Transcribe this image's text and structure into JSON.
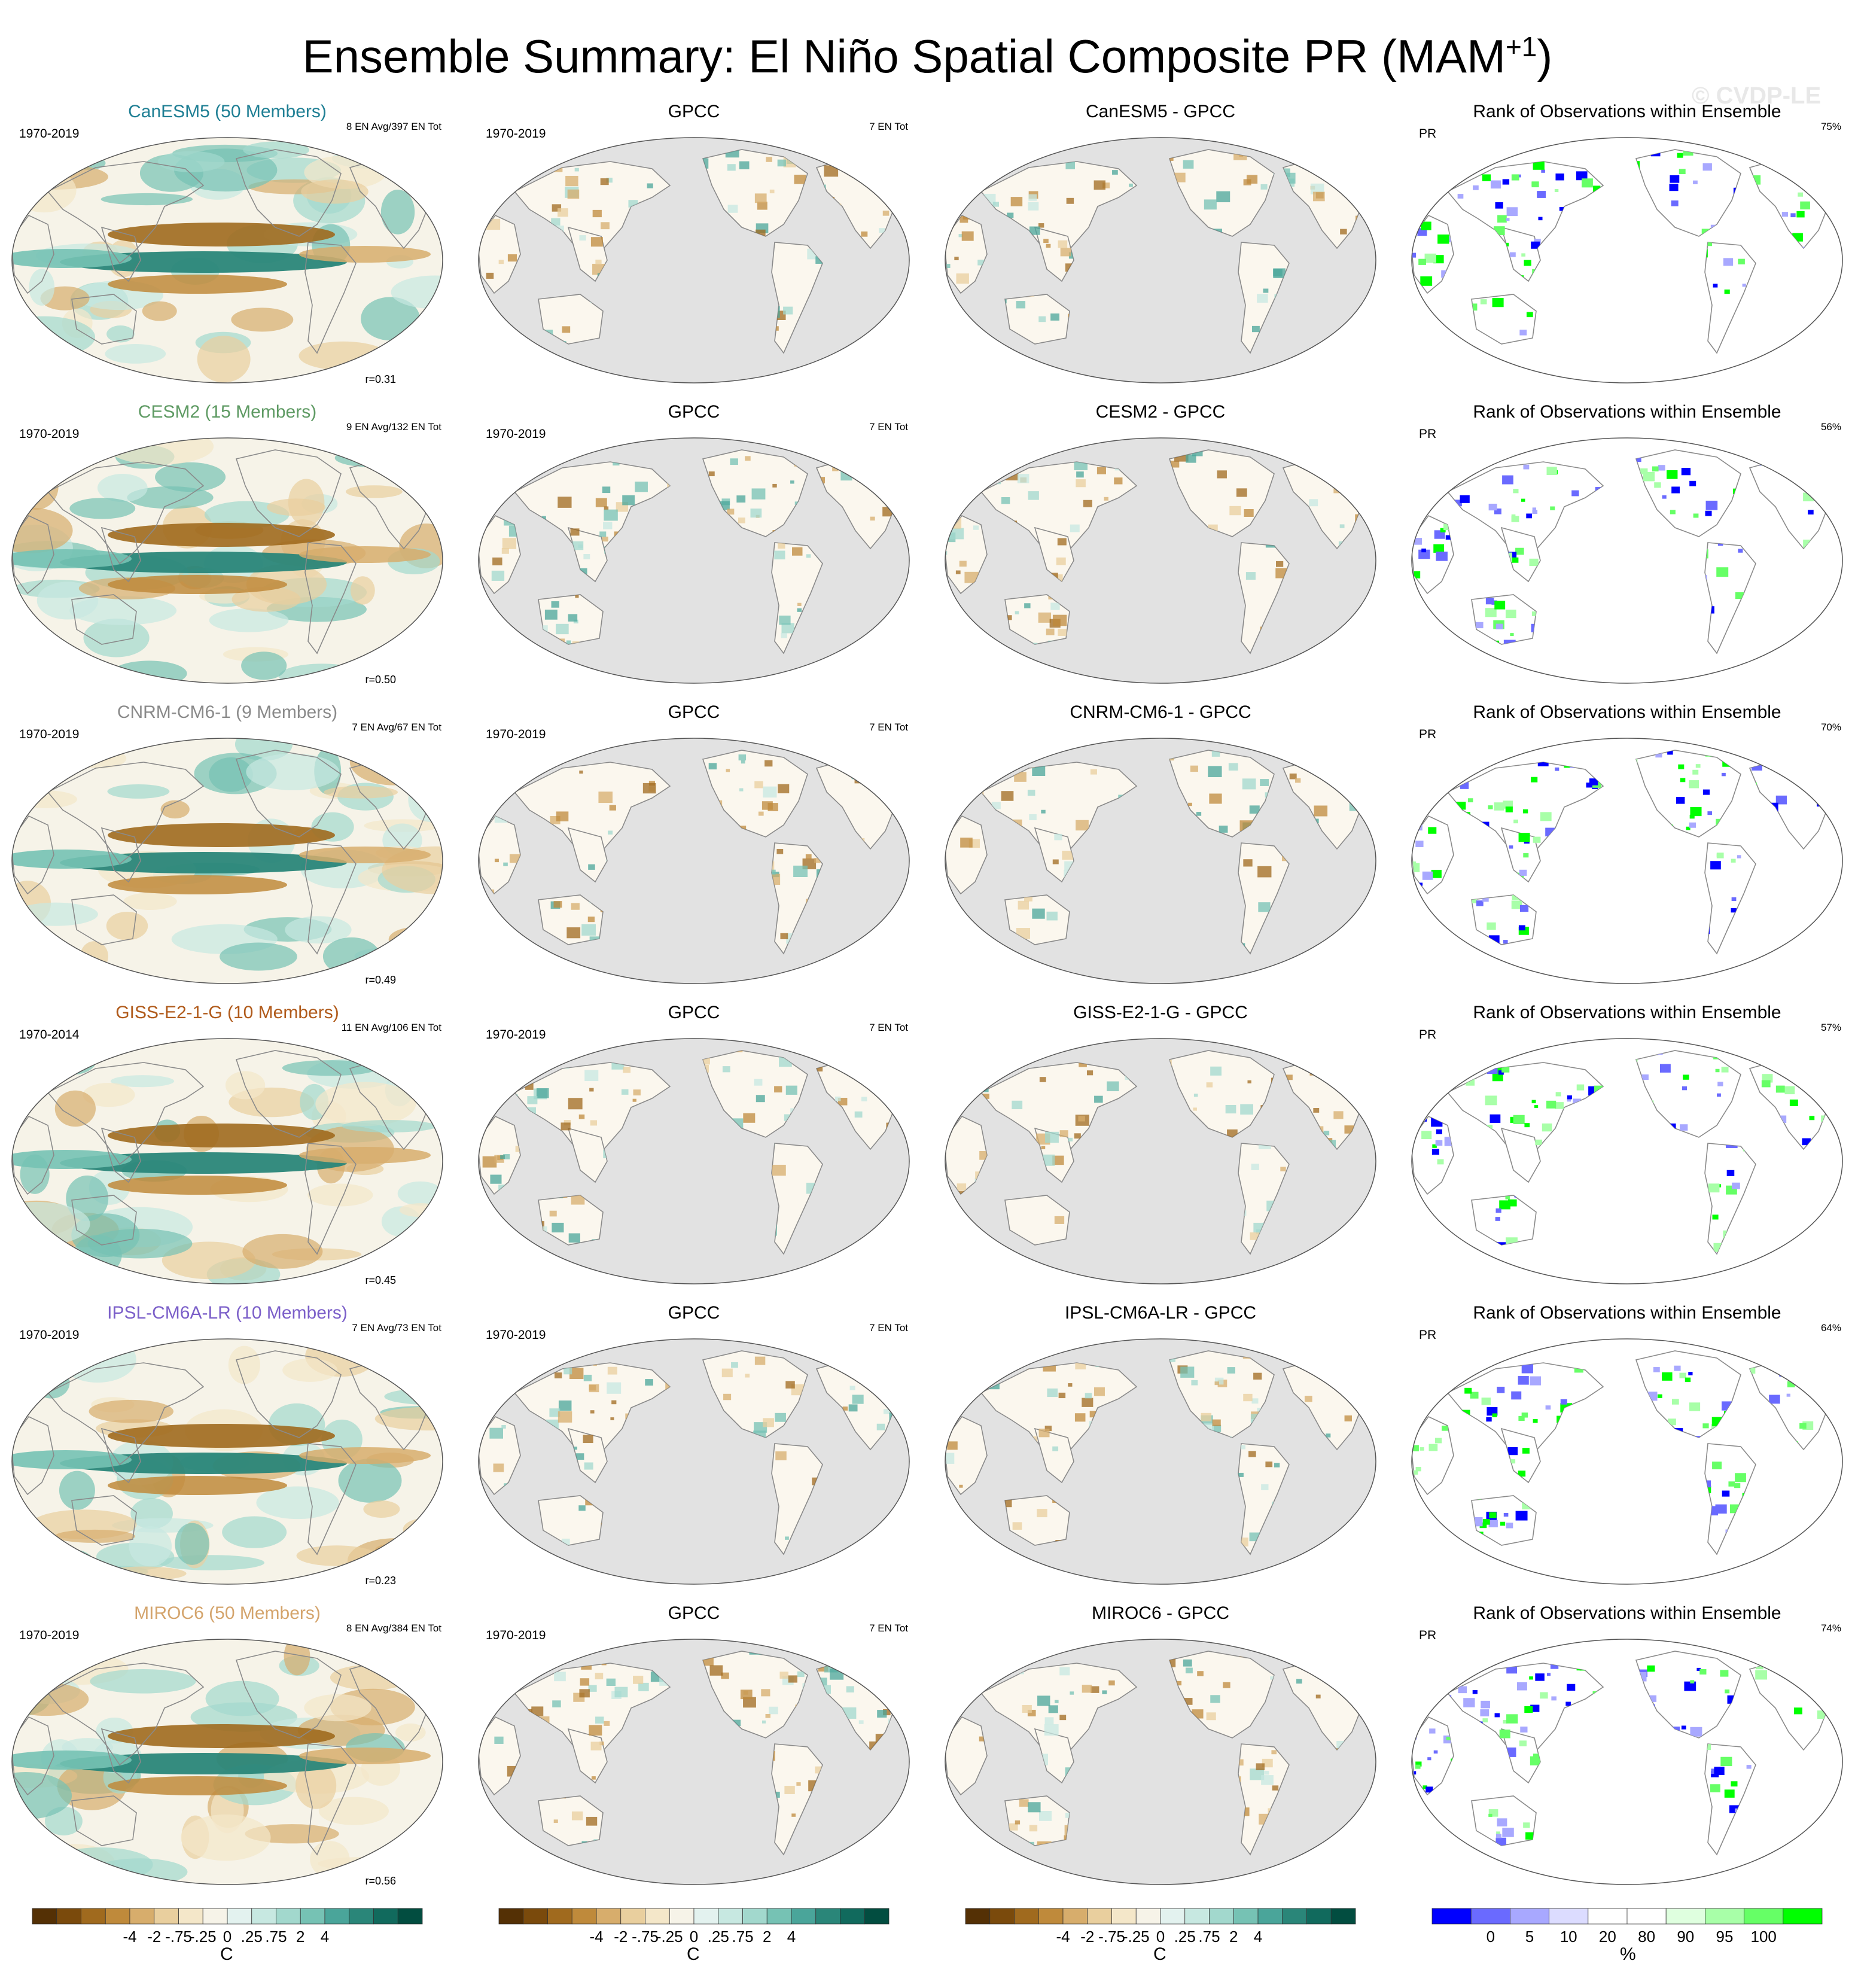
{
  "figure": {
    "title_main": "Ensemble Summary: El Niño Spatial Composite PR (MAM",
    "title_sup": "+1",
    "title_close": ")",
    "watermark": "© CVDP-LE"
  },
  "colors": {
    "diverging_scale": [
      "#543005",
      "#7a4a0c",
      "#a06a1e",
      "#bf8a3b",
      "#d7ad6c",
      "#e9cf9e",
      "#f4e7c9",
      "#f6f3e8",
      "#e3f2ef",
      "#c7e8e1",
      "#a2d8cd",
      "#76c2b4",
      "#4aa59a",
      "#2a8679",
      "#116a5d",
      "#024d40"
    ],
    "rank_scale": [
      "#0000ff",
      "#6a6aff",
      "#a8a8ff",
      "#dcdcff",
      "#ffffff",
      "#ffffff",
      "#dfffdf",
      "#a8ffa8",
      "#66ff66",
      "#00ff00"
    ],
    "land_gray": "#e2e2e2",
    "coast": "#8a8a8a"
  },
  "columns": {
    "obs_title": "GPCC",
    "rank_title": "Rank of Observations within Ensemble",
    "rank_var": "PR",
    "obs_count": "7 EN Tot",
    "obs_years": "1970-2019"
  },
  "rows": [
    {
      "model_title": "CanESM5 (50 Members)",
      "title_color": "#1f7f94",
      "years": "1970-2019",
      "en_info": "8 EN Avg/397 EN Tot",
      "r": "r=0.31",
      "diff_title": "CanESM5 - GPCC",
      "rank_pct": "75%"
    },
    {
      "model_title": "CESM2 (15 Members)",
      "title_color": "#5e9a63",
      "years": "1970-2019",
      "en_info": "9 EN Avg/132 EN Tot",
      "r": "r=0.50",
      "diff_title": "CESM2 - GPCC",
      "rank_pct": "56%"
    },
    {
      "model_title": "CNRM-CM6-1 (9 Members)",
      "title_color": "#8a8a8a",
      "years": "1970-2019",
      "en_info": "7 EN Avg/67 EN Tot",
      "r": "r=0.49",
      "diff_title": "CNRM-CM6-1 - GPCC",
      "rank_pct": "70%"
    },
    {
      "model_title": "GISS-E2-1-G (10 Members)",
      "title_color": "#b05a1a",
      "years": "1970-2014",
      "en_info": "11 EN Avg/106 EN Tot",
      "r": "r=0.45",
      "diff_title": "GISS-E2-1-G - GPCC",
      "rank_pct": "57%"
    },
    {
      "model_title": "IPSL-CM6A-LR (10 Members)",
      "title_color": "#7b5fc9",
      "years": "1970-2019",
      "en_info": "7 EN Avg/73 EN Tot",
      "r": "r=0.23",
      "diff_title": "IPSL-CM6A-LR - GPCC",
      "rank_pct": "64%"
    },
    {
      "model_title": "MIROC6 (50 Members)",
      "title_color": "#d4a46c",
      "years": "1970-2019",
      "en_info": "8 EN Avg/384 EN Tot",
      "r": "r=0.56",
      "diff_title": "MIROC6 - GPCC",
      "rank_pct": "74%"
    }
  ],
  "colorbars": {
    "diverging_ticks": [
      "-4",
      "-2",
      "-.75",
      "-.25",
      "0",
      ".25",
      ".75",
      "2",
      "4"
    ],
    "diverging_unit": "C",
    "rank_ticks": [
      "0",
      "5",
      "10",
      "20",
      "80",
      "90",
      "95",
      "100"
    ],
    "rank_unit": "%"
  },
  "chart_data": {
    "type": "heatmap",
    "title": "Ensemble Summary: El Niño Spatial Composite PR (MAM+1)",
    "panel_columns": [
      "model composite",
      "GPCC",
      "model - GPCC",
      "Rank of Observations within Ensemble"
    ],
    "models": [
      "CanESM5",
      "CESM2",
      "CNRM-CM6-1",
      "GISS-E2-1-G",
      "IPSL-CM6A-LR",
      "MIROC6"
    ],
    "members": [
      50,
      15,
      9,
      10,
      10,
      50
    ],
    "pattern_correlation": [
      0.31,
      0.5,
      0.49,
      0.45,
      0.23,
      0.56
    ],
    "rank_percent": [
      75,
      56,
      70,
      57,
      64,
      74
    ],
    "diverging_levels": [
      -4,
      -2,
      -0.75,
      -0.25,
      0,
      0.25,
      0.75,
      2,
      4
    ],
    "rank_levels": [
      0,
      5,
      10,
      20,
      80,
      90,
      95,
      100
    ],
    "legend_position": "bottom"
  }
}
